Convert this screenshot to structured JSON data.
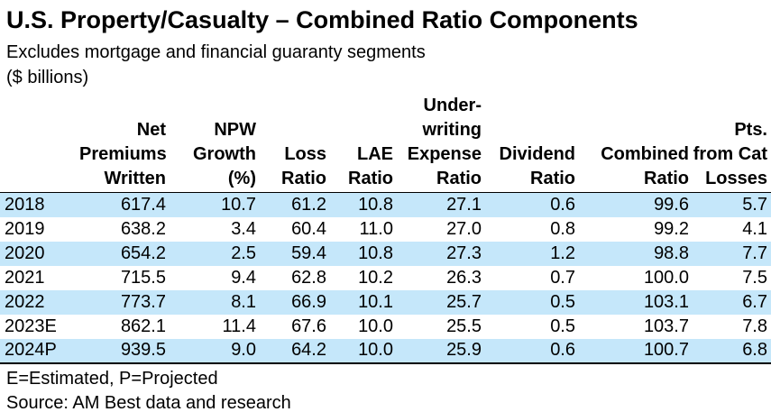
{
  "title": "U.S. Property/Casualty – Combined Ratio Components",
  "subtitle": "Excludes mortgage and financial guaranty segments",
  "units_label": "($ billions)",
  "footnote": "E=Estimated, P=Projected",
  "source": "Source: AM Best data and research",
  "colors": {
    "row_band": "#C5E7FA",
    "text": "#000000",
    "rule": "#000000"
  },
  "chart_data": {
    "type": "table",
    "title": "U.S. Property/Casualty – Combined Ratio Components",
    "subtitle": "Excludes mortgage and financial guaranty segments",
    "units": "$ billions",
    "columns": [
      "Year",
      "Net Premiums Written",
      "NPW Growth (%)",
      "Loss Ratio",
      "LAE Ratio",
      "Underwriting Expense Ratio",
      "Dividend Ratio",
      "Combined Ratio",
      "Pts. from Cat Losses"
    ],
    "header_lines": [
      "",
      "Net\nPremiums\nWritten",
      "NPW\nGrowth\n(%)",
      "Loss\nRatio",
      "LAE\nRatio",
      "Under-\nwriting\nExpense\nRatio",
      "Dividend\nRatio",
      "Combined\nRatio",
      "Pts.\nfrom Cat\nLosses"
    ],
    "rows": [
      {
        "year": "2018",
        "values": [
          617.4,
          10.7,
          61.2,
          10.8,
          27.1,
          0.6,
          99.6,
          5.7
        ]
      },
      {
        "year": "2019",
        "values": [
          638.2,
          3.4,
          60.4,
          11.0,
          27.0,
          0.8,
          99.2,
          4.1
        ]
      },
      {
        "year": "2020",
        "values": [
          654.2,
          2.5,
          59.4,
          10.8,
          27.3,
          1.2,
          98.8,
          7.7
        ]
      },
      {
        "year": "2021",
        "values": [
          715.5,
          9.4,
          62.8,
          10.2,
          26.3,
          0.7,
          100.0,
          7.5
        ]
      },
      {
        "year": "2022",
        "values": [
          773.7,
          8.1,
          66.9,
          10.1,
          25.7,
          0.5,
          103.1,
          6.7
        ]
      },
      {
        "year": "2023E",
        "values": [
          862.1,
          11.4,
          67.6,
          10.0,
          25.5,
          0.5,
          103.7,
          7.8
        ]
      },
      {
        "year": "2024P",
        "values": [
          939.5,
          9.0,
          64.2,
          10.0,
          25.9,
          0.6,
          100.7,
          6.8
        ]
      }
    ],
    "banded_rows": "alternating starting with first data row",
    "layout": "headers right-aligned bottom, values right-aligned, year column left-aligned"
  }
}
